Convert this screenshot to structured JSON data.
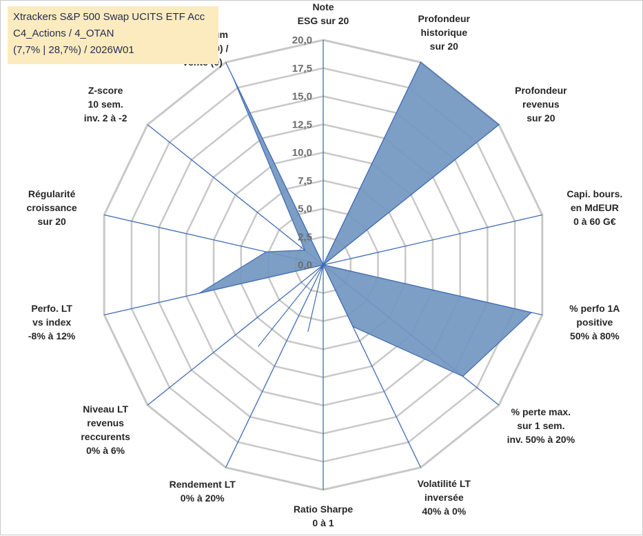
{
  "title_box": {
    "line1": "Xtrackers S&P 500 Swap UCITS ETF Acc",
    "line2": "C4_Actions / 4_OTAN",
    "line3": "(7,7% | 28,7%) / 2026W01"
  },
  "colors": {
    "fill": "#7397c1",
    "stroke": "#3e6bb4",
    "grid": "#c8c8c8",
    "tick_text": "#6b6b6b",
    "label_text": "#262626",
    "title_bg": "#fdebc0"
  },
  "chart_data": {
    "type": "radar",
    "title": "Xtrackers S&P 500 Swap UCITS ETF Acc",
    "rmin": 0,
    "rmax": 20,
    "tick_step": 2.5,
    "grid": true,
    "tick_labels": [
      "0,0",
      "2,5",
      "5,0",
      "7,5",
      "10,0",
      "12,5",
      "15,0",
      "17,5",
      "20,0"
    ],
    "axes": [
      {
        "lines": [
          "Note",
          "ESG sur 20"
        ],
        "value": 0
      },
      {
        "lines": [
          "Profondeur",
          "historique",
          "sur 20"
        ],
        "value": 20
      },
      {
        "lines": [
          "Profondeur",
          "revenus",
          "sur 20"
        ],
        "value": 20
      },
      {
        "lines": [
          "Capi. bours.",
          "en MdEUR",
          "0 à 60 G€"
        ],
        "value": 0
      },
      {
        "lines": [
          "% perfo 1A",
          "positive",
          "50% à 80%"
        ],
        "value": 19
      },
      {
        "lines": [
          "% perte max.",
          "sur 1 sem.",
          "inv. 50% à 20%"
        ],
        "value": 15.9
      },
      {
        "lines": [
          "Volatilité LT",
          "inversée",
          "40% à 0%"
        ],
        "value": 6.1
      },
      {
        "lines": [
          "Ratio Sharpe",
          "0 à 1"
        ],
        "value": 0
      },
      {
        "lines": [
          "Rendement LT",
          "0% à 20%"
        ],
        "value": 0
      },
      {
        "lines": [
          "Niveau LT",
          "revenus",
          "reccurents",
          "0% à 6%"
        ],
        "value": 0
      },
      {
        "lines": [
          "Perfo. LT",
          "vs index",
          "-8% à 12%"
        ],
        "value": 11.3
      },
      {
        "lines": [
          "Régularité",
          "croissance",
          "sur 20"
        ],
        "value": 5.2
      },
      {
        "lines": [
          "Z-score",
          "10 sem.",
          "inv. 2 à -2"
        ],
        "value": 2.1
      },
      {
        "lines": [
          "Momentum",
          "Achat (20) /",
          "Vente (0)"
        ],
        "value": 18.5
      }
    ],
    "extra_points": [
      {
        "between_axes": [
          5,
          7
        ],
        "value": 4.8
      },
      {
        "between_axes": [
          7,
          8
        ],
        "value": 6.1
      },
      {
        "between_axes": [
          8,
          9
        ],
        "value": 9.3
      }
    ]
  }
}
